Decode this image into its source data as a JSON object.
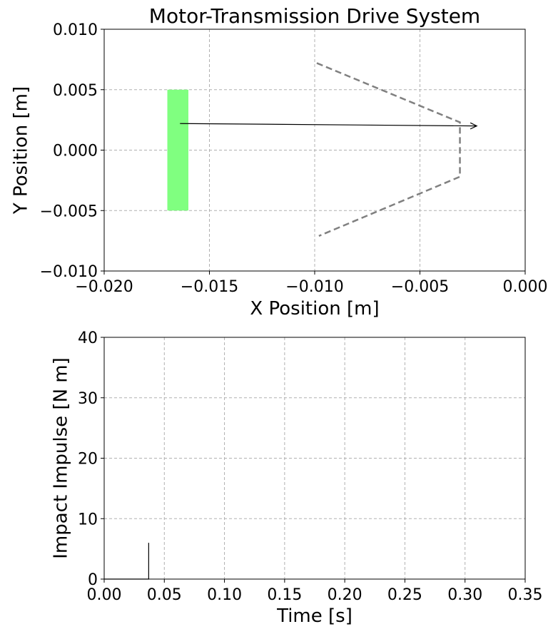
{
  "chart_data": [
    {
      "type": "line",
      "title": "Motor-Transmission Drive System",
      "xlabel": "X Position [m]",
      "ylabel": "Y Position [m]",
      "xlim": [
        -0.02,
        0.0
      ],
      "ylim": [
        -0.01,
        0.01
      ],
      "grid": true,
      "x_ticks": [
        "−0.020",
        "−0.015",
        "−0.010",
        "−0.005",
        "0.000"
      ],
      "x_tick_values": [
        -0.02,
        -0.015,
        -0.01,
        -0.005,
        0.0
      ],
      "y_ticks": [
        "−0.010",
        "−0.005",
        "0.000",
        "0.005",
        "0.010"
      ],
      "y_tick_values": [
        -0.01,
        -0.005,
        0.0,
        0.005,
        0.01
      ],
      "colors": {
        "block": "#80ff80",
        "guide": "#808080",
        "arrow": "#000000",
        "grid": "#b0b0b0"
      },
      "block": {
        "x": [
          -0.017,
          -0.016
        ],
        "y": [
          -0.005,
          0.005
        ]
      },
      "guide_path": {
        "x": [
          -0.0099,
          -0.0031,
          -0.0031,
          -0.0098
        ],
        "y": [
          0.0072,
          0.0023,
          -0.0022,
          -0.0071
        ]
      },
      "arrow": {
        "x": [
          -0.0164,
          -0.0023
        ],
        "y": [
          0.0022,
          0.002
        ]
      }
    },
    {
      "type": "line",
      "title": "",
      "xlabel": "Time [s]",
      "ylabel": "Impact Impulse [N m]",
      "xlim": [
        0.0,
        0.35
      ],
      "ylim": [
        0,
        40
      ],
      "grid": true,
      "x_ticks": [
        "0.00",
        "0.05",
        "0.10",
        "0.15",
        "0.20",
        "0.25",
        "0.30",
        "0.35"
      ],
      "x_tick_values": [
        0.0,
        0.05,
        0.1,
        0.15,
        0.2,
        0.25,
        0.3,
        0.35
      ],
      "y_ticks": [
        "0",
        "10",
        "20",
        "30",
        "40"
      ],
      "y_tick_values": [
        0,
        10,
        20,
        30,
        40
      ],
      "colors": {
        "line": "#000000",
        "grid": "#b0b0b0"
      },
      "series": [
        {
          "x": [
            0.0,
            0.037,
            0.037,
            0.037
          ],
          "y": [
            0.0,
            0.0,
            6.0,
            0.0
          ]
        }
      ]
    }
  ]
}
